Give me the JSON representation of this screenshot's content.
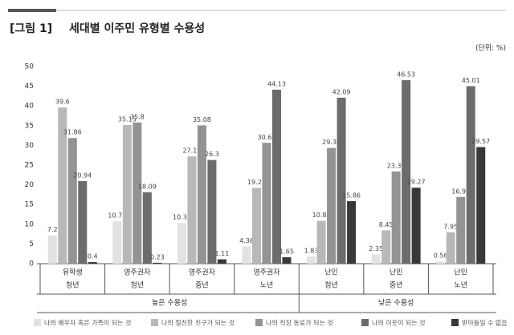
{
  "chart_data": {
    "type": "bar",
    "figure_label": "[그림 1]",
    "title": "세대별 이주민 유형별 수용성",
    "unit": "(단위: %)",
    "categories": [
      "유학생",
      "영주권자",
      "영주권자",
      "영주권자",
      "난민",
      "난민",
      "난민"
    ],
    "age_groups": [
      "청년",
      "청년",
      "중년",
      "노년",
      "청년",
      "중년",
      "노년"
    ],
    "acceptance_groups": [
      "높은 수용성",
      "높은 수용성",
      "높은 수용성",
      "높은 수용성",
      "낮은 수용성",
      "낮은 수용성",
      "낮은 수용성"
    ],
    "series": [
      {
        "name": "나의 배우자 혹은 가족이 되는 것",
        "color": "#e2e2e2",
        "values": [
          7.2,
          10.73,
          10.33,
          4.36,
          1.83,
          2.35,
          0.56
        ]
      },
      {
        "name": "나의 절친한 친구가 되는 것",
        "color": "#b8b8b8",
        "values": [
          39.6,
          35.15,
          27.19,
          19.22,
          10.88,
          8.45,
          7.95
        ]
      },
      {
        "name": "나의 직장 동료가 되는 것",
        "color": "#939393",
        "values": [
          31.86,
          35.8,
          35.08,
          30.64,
          29.34,
          23.39,
          16.92
        ]
      },
      {
        "name": "나의 이웃이 되는 것",
        "color": "#6c6c6c",
        "values": [
          20.94,
          18.09,
          26.3,
          44.13,
          42.09,
          46.53,
          45.01
        ]
      },
      {
        "name": "받아들일 수 없음",
        "color": "#383838",
        "values": [
          0.4,
          0.23,
          1.11,
          1.65,
          15.86,
          19.27,
          29.57
        ]
      }
    ],
    "ylim": [
      0,
      50
    ],
    "yticks": [
      0,
      5,
      10,
      15,
      20,
      25,
      30,
      35,
      40,
      45,
      50
    ]
  }
}
